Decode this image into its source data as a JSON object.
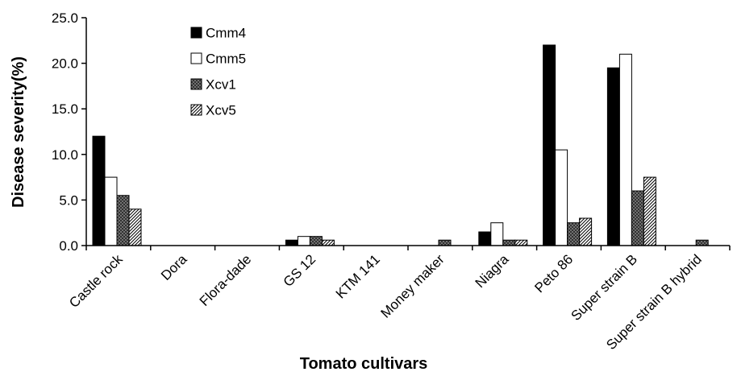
{
  "chart_data": {
    "type": "bar",
    "xlabel": "Tomato cultivars",
    "ylabel": "Disease severity(%)",
    "ylim": [
      0,
      25
    ],
    "yticks": [
      "0.0",
      "5.0",
      "10.0",
      "15.0",
      "20.0",
      "25.0"
    ],
    "grid": false,
    "legend_position": "top-left",
    "categories": [
      "Castle rock",
      "Dora",
      "Flora-dade",
      "GS 12",
      "KTM 141",
      "Money maker",
      "Niagra",
      "Peto 86",
      "Super strain B",
      "Super strain B hybrid"
    ],
    "series": [
      {
        "name": "Cmm4",
        "fill": "solid-black",
        "values": [
          12.0,
          0,
          0,
          0.6,
          0,
          0,
          1.5,
          22.0,
          19.5,
          0
        ]
      },
      {
        "name": "Cmm5",
        "fill": "white",
        "values": [
          7.5,
          0,
          0,
          1.0,
          0,
          0,
          2.5,
          10.5,
          21.0,
          0
        ]
      },
      {
        "name": "Xcv1",
        "fill": "crosshatch-gray",
        "values": [
          5.5,
          0,
          0,
          1.0,
          0,
          0.6,
          0.6,
          2.5,
          6.0,
          0.6
        ]
      },
      {
        "name": "Xcv5",
        "fill": "diagonal-hatch",
        "values": [
          4.0,
          0,
          0,
          0.6,
          0,
          0,
          0.6,
          3.0,
          7.5,
          0
        ]
      }
    ]
  }
}
